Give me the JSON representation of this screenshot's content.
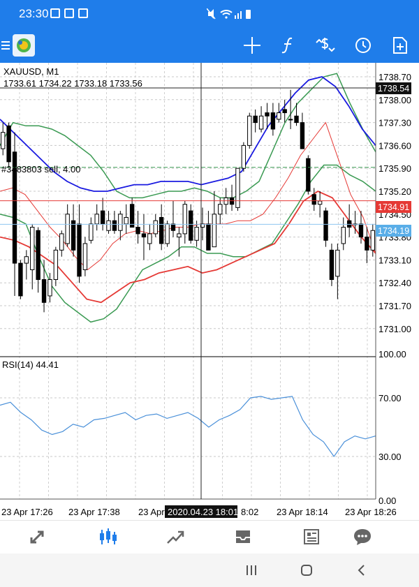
{
  "status_bar": {
    "time": "23:30"
  },
  "toolbar": {
    "icons": [
      "menu-icon",
      "metatrader-logo",
      "crosshair-icon",
      "function-icon",
      "dollar-exchange-icon",
      "clock-icon",
      "new-order-icon"
    ]
  },
  "chart": {
    "symbol_label": "XAUUSD, M1",
    "ohlc_label": "1733.61 1734.22 1733.18 1733.56",
    "order_label": "#348​3803 sell, 4.00",
    "price_ticks": [
      "1738.70",
      "1738.00",
      "1737.30",
      "1736.60",
      "1735.90",
      "1735.20",
      "1734.50",
      "1733.80",
      "1733.10",
      "1732.40",
      "1731.70",
      "1731.00"
    ],
    "badge_cursor": "1738.54",
    "badge_sell": "1734.91",
    "badge_bid": "1734.19",
    "rsi_label": "RSI(14) 44.41",
    "rsi_ticks": [
      "100.00",
      "70.00",
      "30.00",
      "0.00"
    ],
    "time_ticks": [
      "23 Apr 17:26",
      "23 Apr 17:38",
      "23 Apr",
      "8:02",
      "23 Apr 18:14",
      "23 Apr 18:26"
    ],
    "crosshair_time": "2020.04.23 18:01",
    "colors": {
      "upper_lower_band": "#3a9a52",
      "middle_band": "#e53935",
      "ma_blue": "#1a1ae0",
      "rsi": "#4a90d9",
      "sell_line": "#e53935",
      "bid_line": "#8ec5f0",
      "level_line": "#3a9a52"
    }
  },
  "chart_data": {
    "type": "candlestick",
    "title": "XAUUSD, M1",
    "ylim": [
      1730.6,
      1738.9
    ],
    "candles": [
      [
        1736.5,
        1737.3,
        1736.3,
        1737.0
      ],
      [
        1737.2,
        1737.3,
        1735.9,
        1736.1
      ],
      [
        1736.4,
        1737.0,
        1732.0,
        1733.0
      ],
      [
        1733.0,
        1733.1,
        1731.9,
        1732.0
      ],
      [
        1733.0,
        1733.4,
        1732.5,
        1733.2
      ],
      [
        1732.8,
        1734.2,
        1732.2,
        1734.1
      ],
      [
        1734.0,
        1734.1,
        1732.1,
        1732.5
      ],
      [
        1732.5,
        1733.1,
        1731.5,
        1731.8
      ],
      [
        1732.0,
        1732.7,
        1731.8,
        1732.5
      ],
      [
        1732.5,
        1733.5,
        1732.3,
        1733.4
      ],
      [
        1733.4,
        1734.0,
        1733.2,
        1733.9
      ],
      [
        1733.6,
        1734.8,
        1733.5,
        1734.5
      ],
      [
        1734.3,
        1734.8,
        1733.2,
        1733.4
      ],
      [
        1734.2,
        1734.8,
        1732.4,
        1732.6
      ],
      [
        1732.8,
        1733.8,
        1732.6,
        1733.6
      ],
      [
        1733.7,
        1734.4,
        1733.6,
        1734.2
      ],
      [
        1734.2,
        1734.8,
        1734.0,
        1734.5
      ],
      [
        1734.6,
        1735.0,
        1734.0,
        1734.2
      ],
      [
        1734.0,
        1734.6,
        1733.9,
        1734.3
      ],
      [
        1734.3,
        1734.6,
        1733.9,
        1734.0
      ],
      [
        1734.0,
        1734.6,
        1733.7,
        1734.5
      ],
      [
        1734.2,
        1734.8,
        1733.9,
        1734.4
      ],
      [
        1734.8,
        1735.0,
        1734.1,
        1734.1
      ],
      [
        1734.1,
        1734.6,
        1733.6,
        1733.9
      ],
      [
        1733.9,
        1734.5,
        1733.1,
        1733.8
      ],
      [
        1733.6,
        1734.2,
        1733.4,
        1733.9
      ],
      [
        1733.9,
        1734.5,
        1733.8,
        1734.3
      ],
      [
        1734.4,
        1734.8,
        1733.4,
        1733.6
      ],
      [
        1733.6,
        1734.3,
        1733.5,
        1734.2
      ],
      [
        1734.2,
        1734.9,
        1733.8,
        1734.0
      ],
      [
        1733.8,
        1734.1,
        1733.2,
        1733.9
      ],
      [
        1733.9,
        1734.9,
        1733.6,
        1734.8
      ],
      [
        1734.6,
        1734.8,
        1733.6,
        1733.7
      ],
      [
        1733.7,
        1734.3,
        1733.5,
        1734.1
      ],
      [
        1734.1,
        1734.7,
        1733.7,
        1734.2
      ],
      [
        1734.2,
        1734.6,
        1733.4,
        1733.4
      ],
      [
        1733.5,
        1735.2,
        1733.5,
        1734.5
      ],
      [
        1734.5,
        1735.0,
        1734.2,
        1734.8
      ],
      [
        1734.8,
        1735.3,
        1734.5,
        1735.0
      ],
      [
        1735.0,
        1735.4,
        1734.6,
        1734.8
      ],
      [
        1734.7,
        1735.9,
        1734.6,
        1735.9
      ],
      [
        1735.9,
        1736.7,
        1735.8,
        1736.6
      ],
      [
        1736.6,
        1737.6,
        1736.5,
        1737.5
      ],
      [
        1737.5,
        1737.7,
        1737.0,
        1737.3
      ],
      [
        1737.1,
        1737.8,
        1737.0,
        1737.5
      ],
      [
        1737.6,
        1737.9,
        1737.1,
        1737.5
      ],
      [
        1737.6,
        1737.9,
        1736.9,
        1737.1
      ],
      [
        1737.4,
        1737.9,
        1737.3,
        1737.6
      ],
      [
        1737.7,
        1738.0,
        1737.3,
        1737.6
      ],
      [
        1737.4,
        1738.3,
        1737.1,
        1737.4
      ],
      [
        1737.5,
        1737.9,
        1737.2,
        1737.3
      ],
      [
        1737.3,
        1737.6,
        1736.5,
        1736.5
      ],
      [
        1736.2,
        1736.3,
        1735.1,
        1735.2
      ],
      [
        1735.1,
        1735.3,
        1734.6,
        1734.8
      ],
      [
        1734.8,
        1735.2,
        1734.4,
        1734.9
      ],
      [
        1734.6,
        1734.7,
        1733.5,
        1733.7
      ],
      [
        1733.4,
        1733.6,
        1732.3,
        1732.5
      ],
      [
        1732.6,
        1733.6,
        1731.9,
        1733.4
      ],
      [
        1733.6,
        1734.4,
        1733.4,
        1734.1
      ],
      [
        1734.3,
        1734.8,
        1733.8,
        1734.1
      ],
      [
        1734.2,
        1734.6,
        1733.9,
        1734.2
      ],
      [
        1734.2,
        1734.6,
        1733.6,
        1733.8
      ],
      [
        1733.8,
        1734.1,
        1733.0,
        1733.4
      ],
      [
        1733.4,
        1734.2,
        1733.2,
        1734.0
      ]
    ],
    "bands": {
      "upper": [
        1736.6,
        1737.3,
        1737.2,
        1737.2,
        1737.1,
        1736.9,
        1736.6,
        1736.3,
        1735.8,
        1735.2,
        1735.0,
        1735.0,
        1735.1,
        1735.2,
        1735.2,
        1735.3,
        1735.2,
        1735.0,
        1735.0,
        1735.2,
        1735.5,
        1736.4,
        1737.3,
        1737.9,
        1738.3,
        1738.7,
        1738.8,
        1737.9,
        1737.1,
        1736.4
      ],
      "middle": [
        1735.2,
        1735.3,
        1735.1,
        1734.6,
        1734.1,
        1733.7,
        1733.2,
        1732.8,
        1733.1,
        1733.6,
        1733.9,
        1734.0,
        1733.9,
        1734.0,
        1734.1,
        1734.1,
        1734.2,
        1734.2,
        1734.2,
        1734.3,
        1734.3,
        1734.5,
        1735.0,
        1735.6,
        1736.3,
        1736.8,
        1737.3,
        1736.2,
        1735.1,
        1734.4,
        1733.3
      ],
      "lower": [
        1734.5,
        1734.4,
        1734.2,
        1733.2,
        1732.3,
        1731.8,
        1731.5,
        1731.2,
        1731.3,
        1731.6,
        1732.2,
        1732.8,
        1733.0,
        1733.2,
        1733.5,
        1733.5,
        1733.3,
        1733.3,
        1733.2,
        1733.2,
        1733.4,
        1733.6,
        1734.2,
        1734.8,
        1735.5,
        1736.0,
        1736.0,
        1735.7,
        1735.5,
        1735.2
      ]
    },
    "ma_blue": [
      1737.4,
      1737.0,
      1736.6,
      1736.2,
      1735.8,
      1735.5,
      1735.3,
      1735.2,
      1735.2,
      1735.3,
      1735.4,
      1735.4,
      1735.5,
      1735.5,
      1735.5,
      1735.4,
      1735.5,
      1735.6,
      1735.8,
      1736.5,
      1737.2,
      1737.7,
      1738.2,
      1738.6,
      1738.7,
      1738.4,
      1737.8,
      1737.1,
      1736.6
    ],
    "ma_red_lower": [
      1733.8,
      1733.7,
      1733.5,
      1733.2,
      1732.9,
      1732.4,
      1731.9,
      1731.8,
      1732.1,
      1732.4,
      1732.5,
      1732.7,
      1732.8,
      1732.9,
      1732.7,
      1732.8,
      1733.0,
      1733.2,
      1733.4,
      1733.6,
      1734.2,
      1734.9,
      1735.2,
      1735.0,
      1734.4,
      1733.8,
      1733.3
    ],
    "rsi": [
      65,
      67,
      60,
      55,
      48,
      45,
      47,
      52,
      50,
      55,
      56,
      58,
      60,
      55,
      58,
      59,
      56,
      58,
      60,
      56,
      50,
      55,
      58,
      62,
      70,
      71,
      69,
      70,
      71,
      55,
      45,
      40,
      30,
      40,
      44,
      42,
      44
    ]
  }
}
